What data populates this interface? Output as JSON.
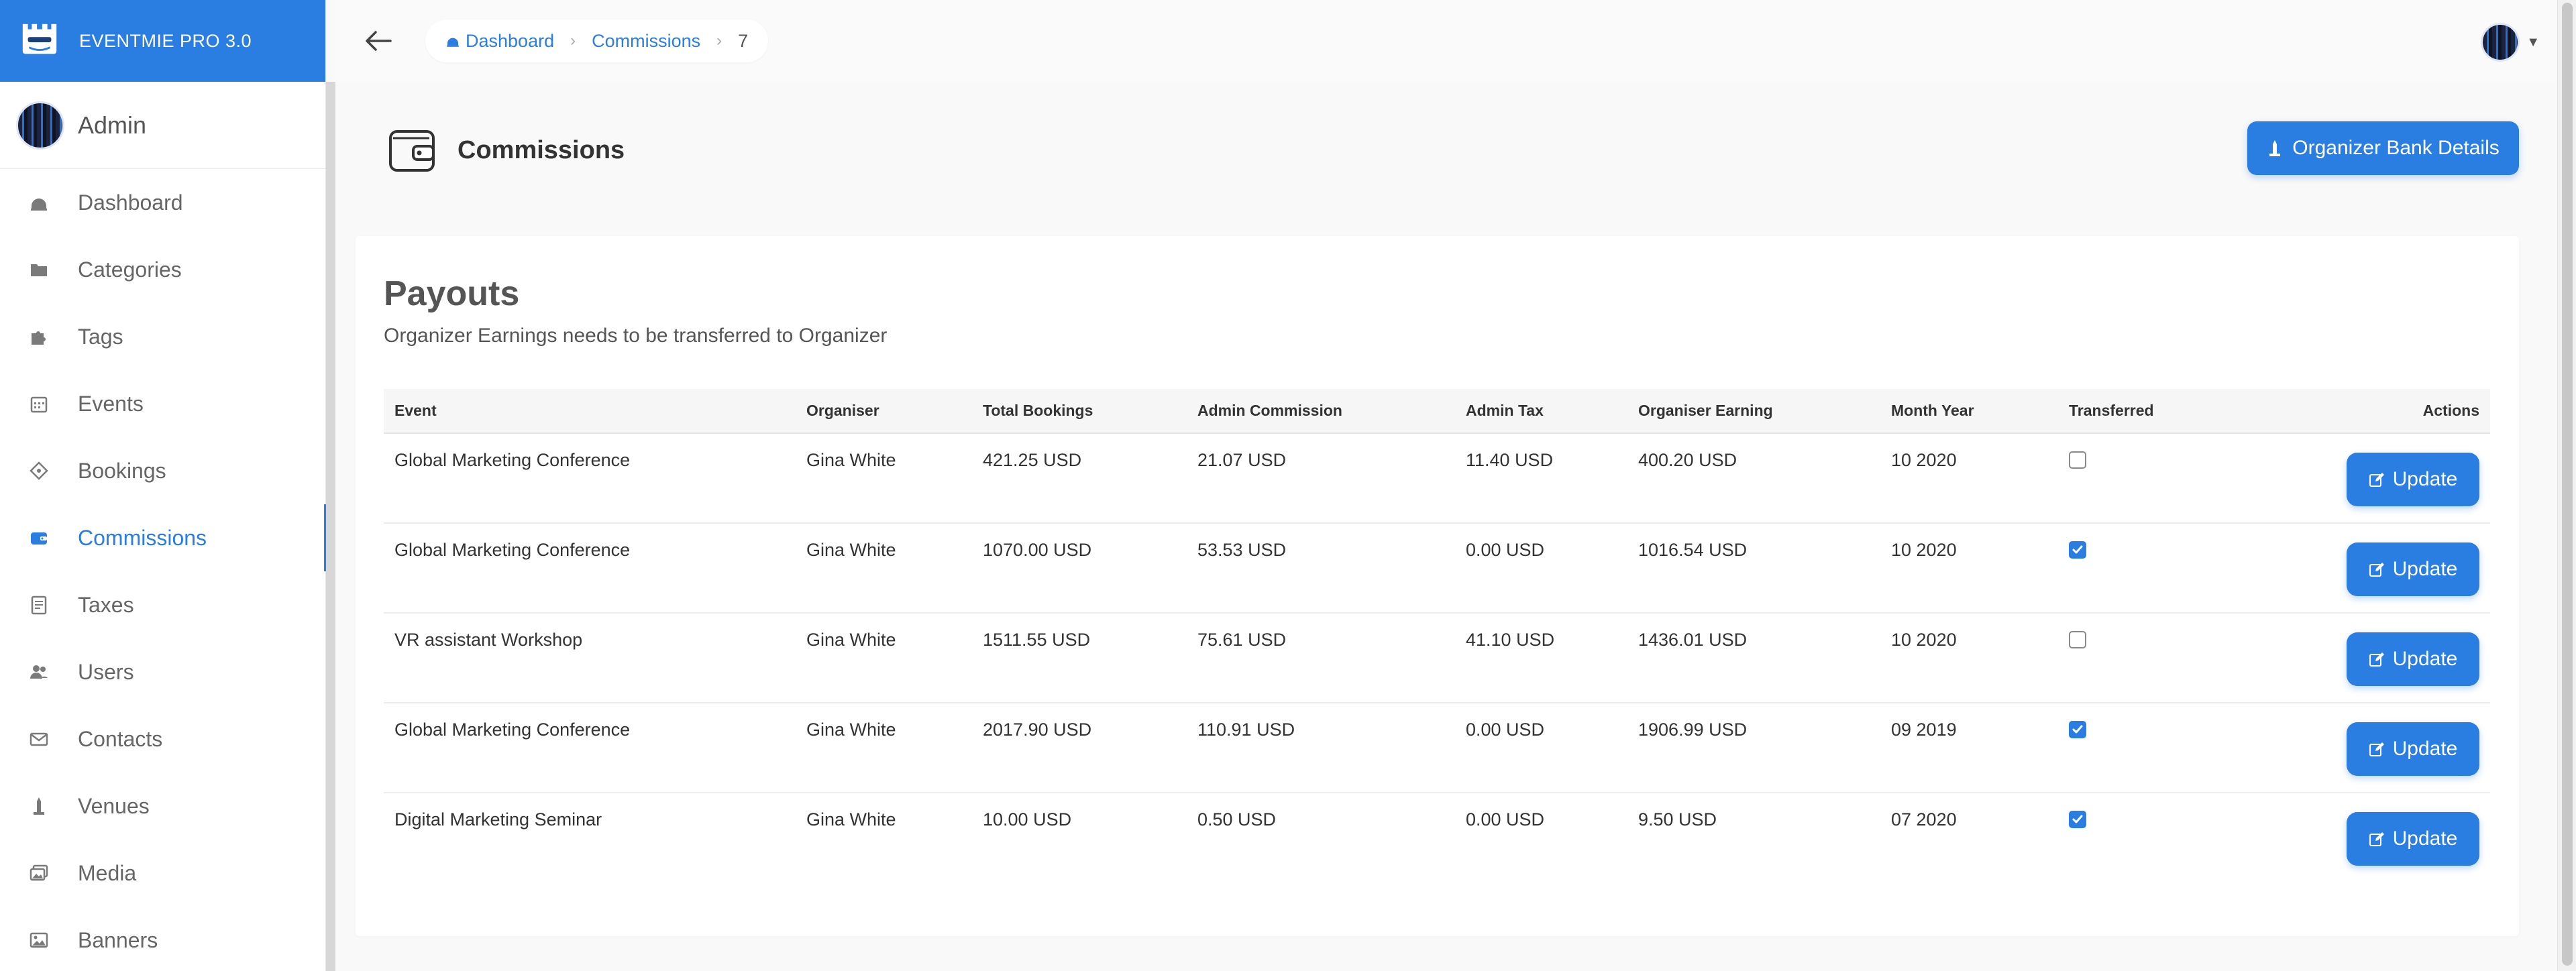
{
  "brand": {
    "name": "EVENTMIE PRO 3.0"
  },
  "admin": {
    "name": "Admin"
  },
  "sidebar": {
    "items": [
      {
        "label": "Dashboard",
        "icon": "dashboard-icon"
      },
      {
        "label": "Categories",
        "icon": "folder-icon"
      },
      {
        "label": "Tags",
        "icon": "puzzle-icon"
      },
      {
        "label": "Events",
        "icon": "calendar-icon"
      },
      {
        "label": "Bookings",
        "icon": "ticket-icon"
      },
      {
        "label": "Commissions",
        "icon": "wallet-icon",
        "active": true
      },
      {
        "label": "Taxes",
        "icon": "receipt-icon"
      },
      {
        "label": "Users",
        "icon": "users-icon"
      },
      {
        "label": "Contacts",
        "icon": "envelope-icon"
      },
      {
        "label": "Venues",
        "icon": "monument-icon"
      },
      {
        "label": "Media",
        "icon": "images-icon"
      },
      {
        "label": "Banners",
        "icon": "picture-icon"
      }
    ]
  },
  "breadcrumb": {
    "items": [
      "Dashboard",
      "Commissions",
      "7"
    ]
  },
  "page": {
    "title": "Commissions",
    "bank_button": "Organizer Bank Details"
  },
  "payouts": {
    "title": "Payouts",
    "subtitle": "Organizer Earnings needs to be transferred to Organizer",
    "columns": [
      "Event",
      "Organiser",
      "Total Bookings",
      "Admin Commission",
      "Admin Tax",
      "Organiser Earning",
      "Month Year",
      "Transferred",
      "Actions"
    ],
    "update_label": "Update",
    "rows": [
      {
        "event": "Global Marketing Conference",
        "organiser": "Gina White",
        "total": "421.25 USD",
        "commission": "21.07 USD",
        "tax": "11.40 USD",
        "earning": "400.20 USD",
        "month": "10 2020",
        "transferred": false
      },
      {
        "event": "Global Marketing Conference",
        "organiser": "Gina White",
        "total": "1070.00 USD",
        "commission": "53.53 USD",
        "tax": "0.00 USD",
        "earning": "1016.54 USD",
        "month": "10 2020",
        "transferred": true
      },
      {
        "event": "VR assistant Workshop",
        "organiser": "Gina White",
        "total": "1511.55 USD",
        "commission": "75.61 USD",
        "tax": "41.10 USD",
        "earning": "1436.01 USD",
        "month": "10 2020",
        "transferred": false
      },
      {
        "event": "Global Marketing Conference",
        "organiser": "Gina White",
        "total": "2017.90 USD",
        "commission": "110.91 USD",
        "tax": "0.00 USD",
        "earning": "1906.99 USD",
        "month": "09 2019",
        "transferred": true
      },
      {
        "event": "Digital Marketing Seminar",
        "organiser": "Gina White",
        "total": "10.00 USD",
        "commission": "0.50 USD",
        "tax": "0.00 USD",
        "earning": "9.50 USD",
        "month": "07 2020",
        "transferred": true
      }
    ]
  },
  "colors": {
    "accent": "#2a7de1",
    "text": "#444444",
    "background": "#f9f9f9"
  }
}
